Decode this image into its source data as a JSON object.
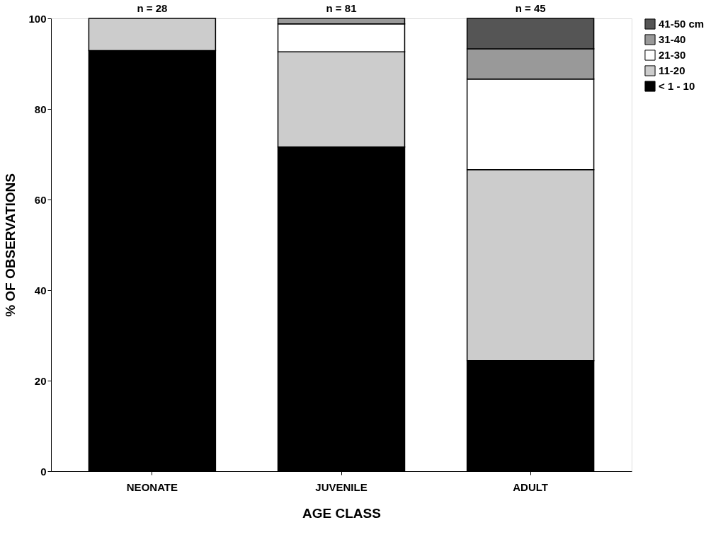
{
  "chart_data": {
    "type": "bar",
    "stacked": true,
    "xlabel": "AGE CLASS",
    "ylabel": "% OF OBSERVATIONS",
    "categories": [
      "NEONATE",
      "JUVENILE",
      "ADULT"
    ],
    "series": [
      {
        "name": "< 1 - 10",
        "color": "#000000",
        "values": [
          92.9,
          71.6,
          24.4
        ]
      },
      {
        "name": "11-20",
        "color": "#cccccc",
        "values": [
          7.1,
          21.0,
          42.2
        ]
      },
      {
        "name": "21-30",
        "color": "#ffffff",
        "values": [
          null,
          6.2,
          20.0
        ]
      },
      {
        "name": "31-40",
        "color": "#999999",
        "values": [
          null,
          1.2,
          6.7
        ]
      },
      {
        "name": "41-50 cm",
        "color": "#555555",
        "values": [
          null,
          null,
          6.7
        ]
      }
    ],
    "ylim": [
      0,
      100
    ],
    "yticks": [
      0,
      20,
      40,
      60,
      80,
      100
    ],
    "grid": false,
    "legend": "right",
    "annotations": [
      {
        "text": "n = 28",
        "x": "NEONATE",
        "y": 100
      },
      {
        "text": "n = 81",
        "x": "JUVENILE",
        "y": 100
      },
      {
        "text": "n = 45",
        "x": "ADULT",
        "y": 100
      }
    ]
  }
}
